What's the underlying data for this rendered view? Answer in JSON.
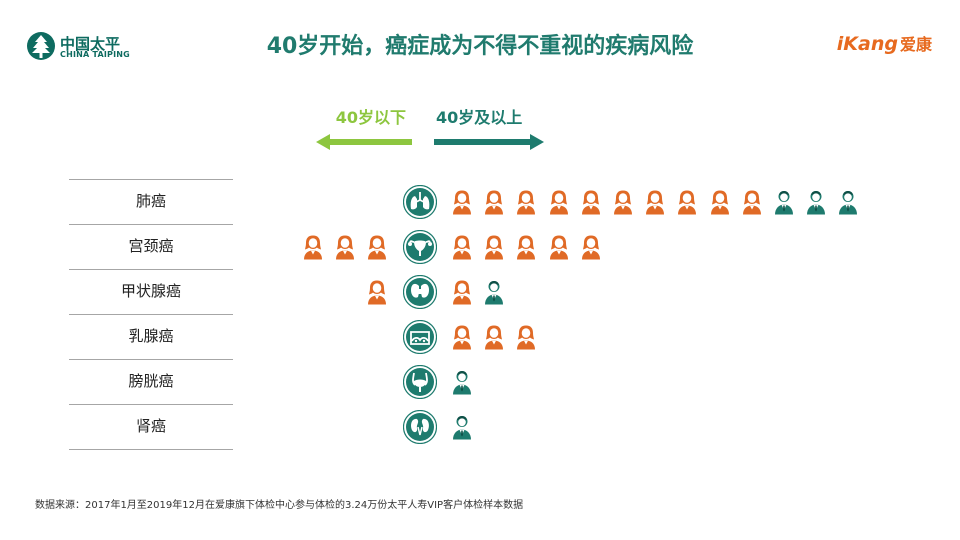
{
  "header": {
    "logo_left_cn": "中国太平",
    "logo_left_en": "CHINA TAIPING",
    "title": "40岁开始，癌症成为不得不重视的疾病风险",
    "logo_right_brand": "iKang",
    "logo_right_cn": "爱康"
  },
  "legend": {
    "under_40": "40岁以下",
    "over_40": "40岁及以上"
  },
  "colors": {
    "female": "#e06a26",
    "male": "#1e7b6e",
    "organ": "#1e7b6e",
    "under_arrow": "#8dc63f",
    "over_arrow": "#1e7b6e"
  },
  "rows": [
    {
      "label": "肺癌",
      "organ_icon": "lungs-icon",
      "under_40": [],
      "over_40": [
        "female",
        "female",
        "female",
        "female",
        "female",
        "female",
        "female",
        "female",
        "female",
        "female",
        "male",
        "male",
        "male"
      ]
    },
    {
      "label": "宫颈癌",
      "organ_icon": "uterus-icon",
      "under_40": [
        "female",
        "female",
        "female"
      ],
      "over_40": [
        "female",
        "female",
        "female",
        "female",
        "female"
      ]
    },
    {
      "label": "甲状腺癌",
      "organ_icon": "thyroid-icon",
      "under_40": [
        "female"
      ],
      "over_40": [
        "female",
        "male"
      ]
    },
    {
      "label": "乳腺癌",
      "organ_icon": "breast-icon",
      "under_40": [],
      "over_40": [
        "female",
        "female",
        "female"
      ]
    },
    {
      "label": "膀胱癌",
      "organ_icon": "bladder-icon",
      "under_40": [],
      "over_40": [
        "male"
      ]
    },
    {
      "label": "肾癌",
      "organ_icon": "kidney-icon",
      "under_40": [],
      "over_40": [
        "male"
      ]
    }
  ],
  "source": "数据来源：2017年1月至2019年12月在爱康旗下体检中心参与体检的3.24万份太平人寿VIP客户体检样本数据"
}
